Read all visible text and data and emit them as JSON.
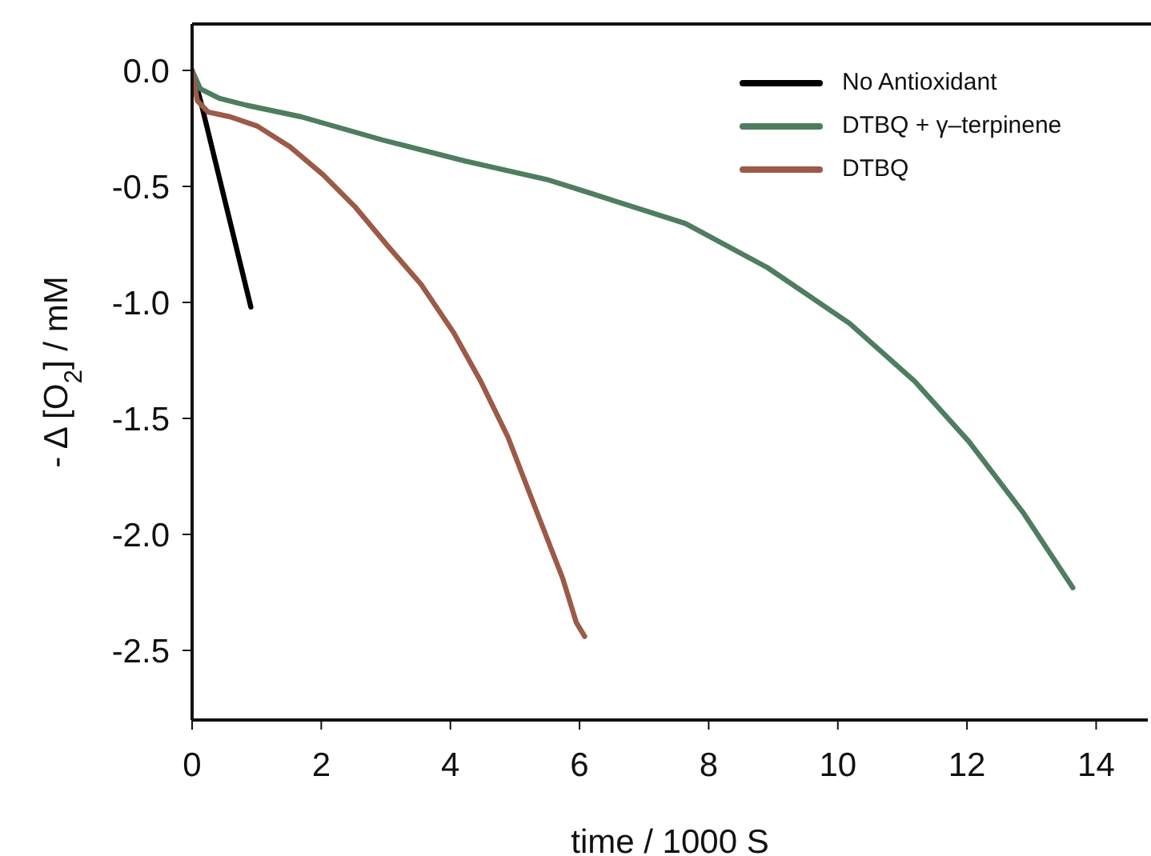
{
  "chart_data": {
    "type": "line",
    "xlabel": "time / 1000 S",
    "ylabel": "- Δ [O$_{2}$] / mM",
    "xlim": [
      0,
      14.8
    ],
    "xticks": [
      0,
      2,
      4,
      6,
      8,
      10,
      12,
      14
    ],
    "ylim": [
      -2.8,
      0.2
    ],
    "yticks": [
      {
        "value": -2.5,
        "label": "-2.5"
      },
      {
        "value": -2,
        "label": "-2.0"
      },
      {
        "value": -1.5,
        "label": "-1.5"
      },
      {
        "value": -1,
        "label": "-1.0"
      },
      {
        "value": -0.5,
        "label": "-0.5"
      },
      {
        "value": 0,
        "label": "0.0"
      }
    ],
    "grid": false,
    "legend": "top right",
    "marker": "none",
    "line_style": "solid",
    "series": [
      {
        "name": "No Antioxidant",
        "color": "#000000",
        "x": [
          0,
          0.13,
          0.91
        ],
        "values": [
          0,
          -0.13,
          -1.02
        ]
      },
      {
        "name": "DTBQ + γ–terpinene",
        "color": "#4e7d5f",
        "x": [
          0,
          0.13,
          0.42,
          0.84,
          1.69,
          2.95,
          4.22,
          5.49,
          5.95,
          7.64,
          8.91,
          10.18,
          11.19,
          12.03,
          12.88,
          13.64
        ],
        "values": [
          0,
          -0.08,
          -0.12,
          -0.15,
          -0.2,
          -0.3,
          -0.39,
          -0.47,
          -0.51,
          -0.66,
          -0.85,
          -1.09,
          -1.34,
          -1.6,
          -1.91,
          -2.23
        ]
      },
      {
        "name": "DTBQ",
        "color": "#9c5a48",
        "x": [
          0,
          0.08,
          0.25,
          0.59,
          1.01,
          1.52,
          2.03,
          2.53,
          3.04,
          3.54,
          4.05,
          4.47,
          4.89,
          5.32,
          5.74,
          5.95,
          6.08
        ],
        "values": [
          0,
          -0.13,
          -0.18,
          -0.2,
          -0.24,
          -0.33,
          -0.45,
          -0.59,
          -0.76,
          -0.92,
          -1.13,
          -1.34,
          -1.58,
          -1.89,
          -2.19,
          -2.38,
          -2.44
        ]
      }
    ]
  }
}
